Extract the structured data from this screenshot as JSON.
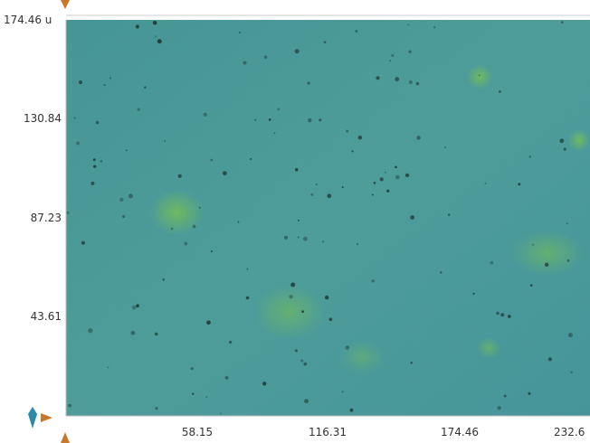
{
  "y_axis": {
    "labels": [
      "174.46 u",
      "130.84",
      "87.23",
      "43.61"
    ]
  },
  "x_axis": {
    "labels": [
      "58.15",
      "116.31",
      "174.46",
      "232.6"
    ]
  }
}
